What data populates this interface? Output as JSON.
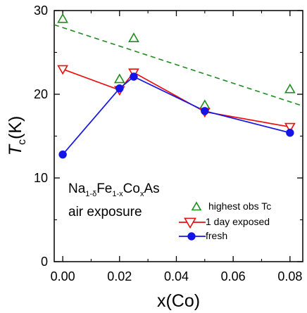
{
  "chart_data": {
    "type": "line",
    "x_label": {
      "main": "x(Co)"
    },
    "y_label": {
      "main": "T",
      "sub": "c",
      "unit": "(K)"
    },
    "xlim": [
      -0.003,
      0.0845
    ],
    "ylim": [
      0,
      30
    ],
    "x_ticks": [
      0.0,
      0.02,
      0.04,
      0.06,
      0.08
    ],
    "x_tick_labels": [
      "0.00",
      "0.02",
      "0.04",
      "0.06",
      "0.08"
    ],
    "y_ticks": [
      0,
      10,
      20,
      30
    ],
    "y_tick_labels": [
      "0",
      "10",
      "20",
      "30"
    ],
    "grid": false,
    "legend_position": "lower-right",
    "annotation": {
      "line1_parts": [
        "Na",
        "1-δ",
        "Fe",
        "1-x",
        "Co",
        "x",
        "As"
      ],
      "line2": "air exposure"
    },
    "series": [
      {
        "name": "highest obs Tc",
        "color": "#1e8c1e",
        "marker": "triangle-up-open",
        "line": "none",
        "x": [
          0.0,
          0.02,
          0.025,
          0.05,
          0.08
        ],
        "y": [
          29.0,
          21.8,
          26.7,
          18.7,
          20.6
        ]
      },
      {
        "name": "1 day exposed",
        "color": "#e8100f",
        "marker": "triangle-down-open",
        "line": "solid",
        "x": [
          0.0,
          0.02,
          0.025,
          0.05,
          0.08
        ],
        "y": [
          23.0,
          20.5,
          22.6,
          17.9,
          16.1
        ]
      },
      {
        "name": "fresh",
        "color": "#1414e6",
        "marker": "circle-filled",
        "line": "solid",
        "x": [
          0.0,
          0.02,
          0.025,
          0.05,
          0.08
        ],
        "y": [
          12.8,
          20.7,
          22.1,
          18.0,
          15.4
        ]
      }
    ],
    "trend_line": {
      "color": "#1e8c1e",
      "style": "dashed",
      "x": [
        -0.003,
        0.0845
      ],
      "y": [
        28.3,
        18.6
      ]
    }
  }
}
